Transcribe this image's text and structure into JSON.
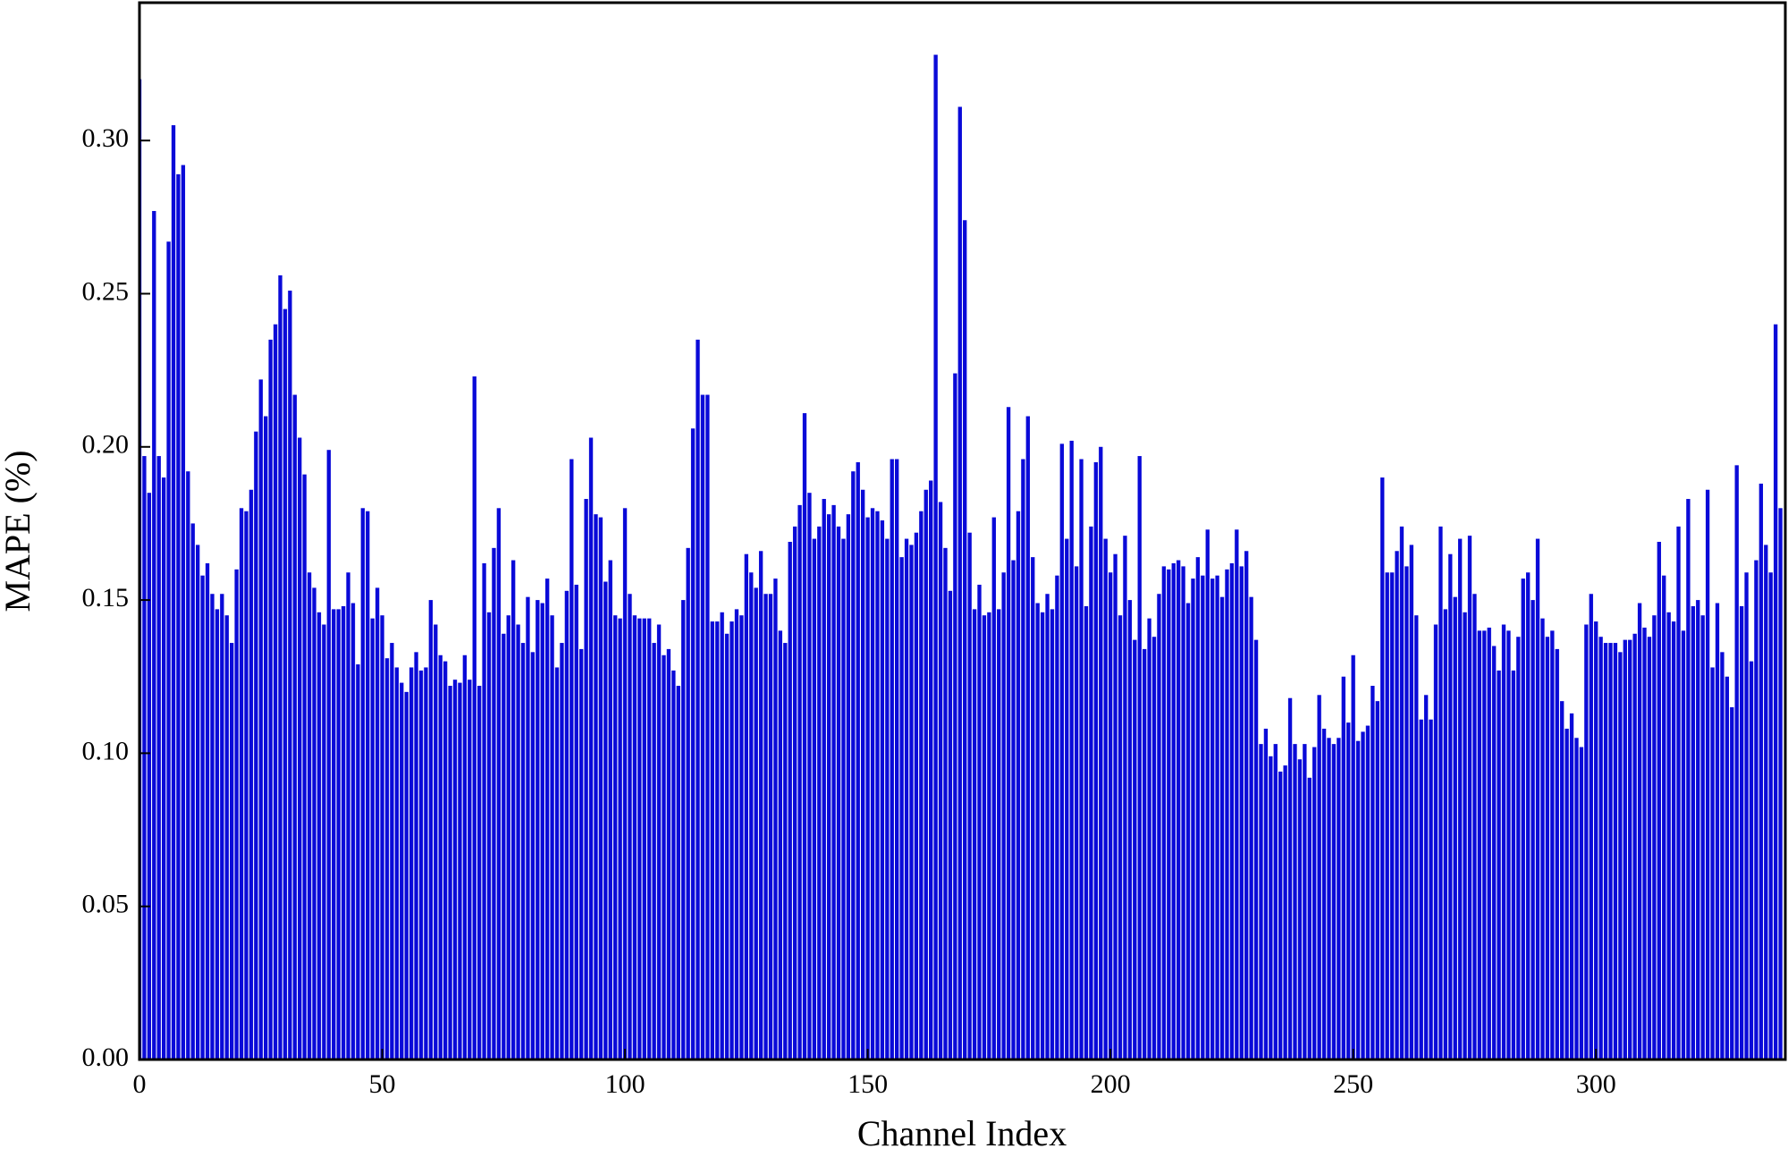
{
  "chart_data": {
    "type": "bar",
    "xlabel": "Channel Index",
    "ylabel": "MAPE (%)",
    "color": "#0a0ad8",
    "xlim": [
      0,
      339
    ],
    "xticks": [
      0,
      50,
      100,
      150,
      200,
      250,
      300
    ],
    "ylim": [
      0,
      0.345
    ],
    "yticks": [
      {
        "value": 0,
        "label": "0.00"
      },
      {
        "value": 0.05,
        "label": "0.05"
      },
      {
        "value": 0.1,
        "label": "0.10"
      },
      {
        "value": 0.15,
        "label": "0.15"
      },
      {
        "value": 0.2,
        "label": "0.20"
      },
      {
        "value": 0.25,
        "label": "0.25"
      },
      {
        "value": 0.3,
        "label": "0.30"
      }
    ],
    "x": [
      0,
      1,
      2,
      3,
      4,
      5,
      6,
      7,
      8,
      9,
      10,
      11,
      12,
      13,
      14,
      15,
      16,
      17,
      18,
      19,
      20,
      21,
      22,
      23,
      24,
      25,
      26,
      27,
      28,
      29,
      30,
      31,
      32,
      33,
      34,
      35,
      36,
      37,
      38,
      39,
      40,
      41,
      42,
      43,
      44,
      45,
      46,
      47,
      48,
      49,
      50,
      51,
      52,
      53,
      54,
      55,
      56,
      57,
      58,
      59,
      60,
      61,
      62,
      63,
      64,
      65,
      66,
      67,
      68,
      69,
      70,
      71,
      72,
      73,
      74,
      75,
      76,
      77,
      78,
      79,
      80,
      81,
      82,
      83,
      84,
      85,
      86,
      87,
      88,
      89,
      90,
      91,
      92,
      93,
      94,
      95,
      96,
      97,
      98,
      99,
      100,
      101,
      102,
      103,
      104,
      105,
      106,
      107,
      108,
      109,
      110,
      111,
      112,
      113,
      114,
      115,
      116,
      117,
      118,
      119,
      120,
      121,
      122,
      123,
      124,
      125,
      126,
      127,
      128,
      129,
      130,
      131,
      132,
      133,
      134,
      135,
      136,
      137,
      138,
      139,
      140,
      141,
      142,
      143,
      144,
      145,
      146,
      147,
      148,
      149,
      150,
      151,
      152,
      153,
      154,
      155,
      156,
      157,
      158,
      159,
      160,
      161,
      162,
      163,
      164,
      165,
      166,
      167,
      168,
      169,
      170,
      171,
      172,
      173,
      174,
      175,
      176,
      177,
      178,
      179,
      180,
      181,
      182,
      183,
      184,
      185,
      186,
      187,
      188,
      189,
      190,
      191,
      192,
      193,
      194,
      195,
      196,
      197,
      198,
      199,
      200,
      201,
      202,
      203,
      204,
      205,
      206,
      207,
      208,
      209,
      210,
      211,
      212,
      213,
      214,
      215,
      216,
      217,
      218,
      219,
      220,
      221,
      222,
      223,
      224,
      225,
      226,
      227,
      228,
      229,
      230,
      231,
      232,
      233,
      234,
      235,
      236,
      237,
      238,
      239,
      240,
      241,
      242,
      243,
      244,
      245,
      246,
      247,
      248,
      249,
      250,
      251,
      252,
      253,
      254,
      255,
      256,
      257,
      258,
      259,
      260,
      261,
      262,
      263,
      264,
      265,
      266,
      267,
      268,
      269,
      270,
      271,
      272,
      273,
      274,
      275,
      276,
      277,
      278,
      279,
      280,
      281,
      282,
      283,
      284,
      285,
      286,
      287,
      288,
      289,
      290,
      291,
      292,
      293,
      294,
      295,
      296,
      297,
      298,
      299,
      300,
      301,
      302,
      303,
      304,
      305,
      306,
      307,
      308,
      309,
      310,
      311,
      312,
      313,
      314,
      315,
      316,
      317,
      318,
      319,
      320,
      321,
      322,
      323,
      324,
      325,
      326,
      327,
      328,
      329,
      330,
      331,
      332,
      333,
      334,
      335,
      336,
      337,
      338
    ],
    "values": [
      0.32,
      0.197,
      0.185,
      0.277,
      0.197,
      0.19,
      0.267,
      0.305,
      0.289,
      0.292,
      0.192,
      0.175,
      0.168,
      0.158,
      0.162,
      0.152,
      0.147,
      0.152,
      0.145,
      0.136,
      0.16,
      0.18,
      0.179,
      0.186,
      0.205,
      0.222,
      0.21,
      0.235,
      0.24,
      0.256,
      0.245,
      0.251,
      0.217,
      0.203,
      0.191,
      0.159,
      0.154,
      0.146,
      0.142,
      0.199,
      0.147,
      0.147,
      0.148,
      0.159,
      0.149,
      0.129,
      0.18,
      0.179,
      0.144,
      0.154,
      0.145,
      0.131,
      0.136,
      0.128,
      0.123,
      0.12,
      0.128,
      0.133,
      0.127,
      0.128,
      0.15,
      0.142,
      0.132,
      0.13,
      0.122,
      0.124,
      0.123,
      0.132,
      0.124,
      0.223,
      0.122,
      0.162,
      0.146,
      0.167,
      0.18,
      0.139,
      0.145,
      0.163,
      0.142,
      0.136,
      0.151,
      0.133,
      0.15,
      0.149,
      0.157,
      0.145,
      0.128,
      0.136,
      0.153,
      0.196,
      0.155,
      0.134,
      0.183,
      0.203,
      0.178,
      0.177,
      0.156,
      0.163,
      0.145,
      0.144,
      0.18,
      0.152,
      0.145,
      0.144,
      0.144,
      0.144,
      0.136,
      0.142,
      0.132,
      0.134,
      0.127,
      0.122,
      0.15,
      0.167,
      0.206,
      0.235,
      0.217,
      0.217,
      0.143,
      0.143,
      0.146,
      0.139,
      0.143,
      0.147,
      0.145,
      0.165,
      0.159,
      0.154,
      0.166,
      0.152,
      0.152,
      0.157,
      0.14,
      0.136,
      0.169,
      0.174,
      0.181,
      0.211,
      0.185,
      0.17,
      0.174,
      0.183,
      0.178,
      0.181,
      0.174,
      0.17,
      0.178,
      0.192,
      0.195,
      0.186,
      0.177,
      0.18,
      0.179,
      0.176,
      0.17,
      0.196,
      0.196,
      0.164,
      0.17,
      0.168,
      0.172,
      0.179,
      0.186,
      0.189,
      0.328,
      0.182,
      0.167,
      0.153,
      0.224,
      0.311,
      0.274,
      0.172,
      0.147,
      0.155,
      0.145,
      0.146,
      0.177,
      0.147,
      0.159,
      0.213,
      0.163,
      0.179,
      0.196,
      0.21,
      0.164,
      0.149,
      0.146,
      0.152,
      0.147,
      0.158,
      0.201,
      0.17,
      0.202,
      0.161,
      0.196,
      0.148,
      0.174,
      0.195,
      0.2,
      0.17,
      0.159,
      0.165,
      0.145,
      0.171,
      0.15,
      0.137,
      0.197,
      0.134,
      0.144,
      0.138,
      0.152,
      0.161,
      0.16,
      0.162,
      0.163,
      0.161,
      0.149,
      0.157,
      0.164,
      0.158,
      0.173,
      0.157,
      0.158,
      0.151,
      0.16,
      0.162,
      0.173,
      0.161,
      0.166,
      0.151,
      0.137,
      0.103,
      0.108,
      0.099,
      0.103,
      0.094,
      0.096,
      0.118,
      0.103,
      0.098,
      0.103,
      0.092,
      0.102,
      0.119,
      0.108,
      0.105,
      0.103,
      0.105,
      0.125,
      0.11,
      0.132,
      0.104,
      0.107,
      0.109,
      0.122,
      0.117,
      0.19,
      0.159,
      0.159,
      0.166,
      0.174,
      0.161,
      0.168,
      0.145,
      0.111,
      0.119,
      0.111,
      0.142,
      0.174,
      0.147,
      0.165,
      0.151,
      0.17,
      0.146,
      0.171,
      0.152,
      0.14,
      0.14,
      0.141,
      0.135,
      0.127,
      0.142,
      0.14,
      0.127,
      0.138,
      0.157,
      0.159,
      0.15,
      0.17,
      0.144,
      0.138,
      0.14,
      0.134,
      0.117,
      0.108,
      0.113,
      0.105,
      0.102,
      0.142,
      0.152,
      0.143,
      0.138,
      0.136,
      0.136,
      0.136,
      0.133,
      0.137,
      0.137,
      0.139,
      0.149,
      0.141,
      0.138,
      0.145,
      0.169,
      0.158,
      0.146,
      0.143,
      0.174,
      0.14,
      0.183,
      0.148,
      0.15,
      0.145,
      0.186,
      0.128,
      0.149,
      0.133,
      0.125,
      0.115,
      0.194,
      0.148,
      0.159,
      0.13,
      0.163,
      0.188,
      0.168,
      0.159,
      0.24,
      0.18
    ]
  }
}
